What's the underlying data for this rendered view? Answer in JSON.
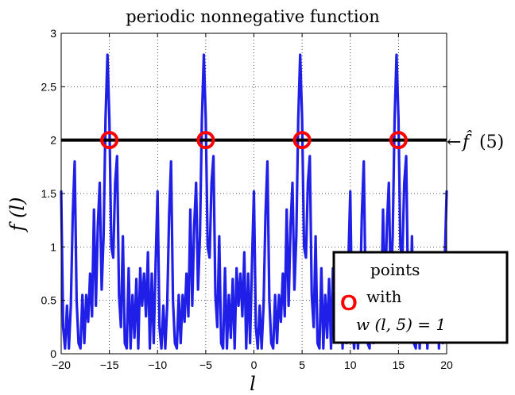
{
  "chart_data": {
    "type": "line",
    "title": "periodic nonnegative function",
    "xlabel": "l",
    "ylabel": "f (l)",
    "xlim": [
      -20,
      20
    ],
    "ylim": [
      0,
      3
    ],
    "x_ticks": [
      "−20",
      "−15",
      "−10",
      "−5",
      "0",
      "5",
      "10",
      "15",
      "20"
    ],
    "y_ticks": [
      "0",
      "0.5",
      "1",
      "1.5",
      "2",
      "2.5",
      "3"
    ],
    "grid": true,
    "period": 10,
    "series": [
      {
        "name": "",
        "color": "#1f1fe8",
        "x": [
          -20,
          -19.8,
          -19.6,
          -19.4,
          -19.2,
          -19.0,
          -18.8,
          -18.6,
          -18.4,
          -18.2,
          -18.0,
          -17.8,
          -17.6,
          -17.4,
          -17.2,
          -17.0,
          -16.8,
          -16.6,
          -16.4,
          -16.2,
          -16.0,
          -15.8,
          -15.6,
          -15.4,
          -15.2,
          -15.0,
          -14.8,
          -14.6,
          -14.4,
          -14.2,
          -14.0,
          -13.8,
          -13.6,
          -13.4,
          -13.2,
          -13.0,
          -12.8,
          -12.6,
          -12.4,
          -12.2,
          -12.0,
          -11.8,
          -11.6,
          -11.4,
          -11.2,
          -11.0,
          -10.8,
          -10.6,
          -10.4,
          -10.2,
          -10.0,
          -9.8,
          -9.6,
          -9.4,
          -9.2,
          -9.0,
          -8.8,
          -8.6,
          -8.4,
          -8.2,
          -8.0,
          -7.8,
          -7.6,
          -7.4,
          -7.2,
          -7.0,
          -6.8,
          -6.6,
          -6.4,
          -6.2,
          -6.0,
          -5.8,
          -5.6,
          -5.4,
          -5.2,
          -5.0,
          -4.8,
          -4.6,
          -4.4,
          -4.2,
          -4.0,
          -3.8,
          -3.6,
          -3.4,
          -3.2,
          -3.0,
          -2.8,
          -2.6,
          -2.4,
          -2.2,
          -2.0,
          -1.8,
          -1.6,
          -1.4,
          -1.2,
          -1.0,
          -0.8,
          -0.6,
          -0.4,
          -0.2,
          0.0,
          0.2,
          0.4,
          0.6,
          0.8,
          1.0,
          1.2,
          1.4,
          1.6,
          1.8,
          2.0,
          2.2,
          2.4,
          2.6,
          2.8,
          3.0,
          3.2,
          3.4,
          3.6,
          3.8,
          4.0,
          4.2,
          4.4,
          4.6,
          4.8,
          5.0,
          5.2,
          5.4,
          5.6,
          5.8,
          6.0,
          6.2,
          6.4,
          6.6,
          6.8,
          7.0,
          7.2,
          7.4,
          7.6,
          7.8,
          8.0,
          8.2,
          8.4,
          8.6,
          8.8,
          9.0,
          9.2,
          9.4,
          9.6,
          9.8,
          10.0,
          10.2,
          10.4,
          10.6,
          10.8,
          11.0,
          11.2,
          11.4,
          11.6,
          11.8,
          12.0,
          12.2,
          12.4,
          12.6,
          12.8,
          13.0,
          13.2,
          13.4,
          13.6,
          13.8,
          14.0,
          14.2,
          14.4,
          14.6,
          14.8,
          15.0,
          15.2,
          15.4,
          15.6,
          15.8,
          16.0,
          16.2,
          16.4,
          16.6,
          16.8,
          17.0,
          17.2,
          17.4,
          17.6,
          17.8,
          18.0,
          18.2,
          18.4,
          18.6,
          18.8,
          19.0,
          19.2,
          19.4,
          19.6,
          19.8,
          20.0
        ],
        "y": [
          1.52,
          0.25,
          0.05,
          0.45,
          0.05,
          0.45,
          1.3,
          1.8,
          0.5,
          0.1,
          0.05,
          0.55,
          0.1,
          0.55,
          0.3,
          0.75,
          0.35,
          1.35,
          0.45,
          1.2,
          1.6,
          0.6,
          1.1,
          2.2,
          2.8,
          2.2,
          1.0,
          0.9,
          1.6,
          1.85,
          0.55,
          0.25,
          1.1,
          0.1,
          0.05,
          0.8,
          0.05,
          0.55,
          0.15,
          0.7,
          0.05,
          0.8,
          0.45,
          0.75,
          0.35,
          0.95,
          0.05,
          0.75,
          0.1,
          0.85,
          1.52,
          0.25,
          0.05,
          0.45,
          0.05,
          0.45,
          1.3,
          1.8,
          0.5,
          0.1,
          0.05,
          0.55,
          0.1,
          0.55,
          0.3,
          0.75,
          0.35,
          1.35,
          0.45,
          1.2,
          1.6,
          0.6,
          1.1,
          2.2,
          2.8,
          2.2,
          1.0,
          0.9,
          1.6,
          1.85,
          0.55,
          0.25,
          1.1,
          0.1,
          0.05,
          0.8,
          0.05,
          0.55,
          0.15,
          0.7,
          0.05,
          0.8,
          0.45,
          0.75,
          0.35,
          0.95,
          0.05,
          0.75,
          0.1,
          0.85,
          1.52,
          0.25,
          0.05,
          0.45,
          0.05,
          0.45,
          1.3,
          1.8,
          0.5,
          0.1,
          0.05,
          0.55,
          0.1,
          0.55,
          0.3,
          0.75,
          0.35,
          1.35,
          0.45,
          1.2,
          1.6,
          0.6,
          1.1,
          2.2,
          2.8,
          2.2,
          1.0,
          0.9,
          1.6,
          1.85,
          0.55,
          0.25,
          1.1,
          0.1,
          0.05,
          0.8,
          0.05,
          0.55,
          0.15,
          0.7,
          0.05,
          0.8,
          0.45,
          0.75,
          0.35,
          0.95,
          0.05,
          0.75,
          0.1,
          0.85,
          1.52,
          0.25,
          0.05,
          0.45,
          0.05,
          0.45,
          1.3,
          1.8,
          0.5,
          0.1,
          0.05,
          0.55,
          0.1,
          0.55,
          0.3,
          0.75,
          0.35,
          1.35,
          0.45,
          1.2,
          1.6,
          0.6,
          1.1,
          2.2,
          2.8,
          2.2,
          1.0,
          0.9,
          1.6,
          1.85,
          0.55,
          0.25,
          1.1,
          0.1,
          0.05,
          0.8,
          0.05,
          0.55,
          0.15,
          0.7,
          0.05,
          0.8,
          0.45,
          0.75,
          0.35,
          0.95,
          0.05,
          0.75,
          0.1,
          0.85,
          1.52
        ]
      }
    ],
    "threshold": {
      "y": 2,
      "color": "#000000",
      "label_prefix": "←",
      "label_hat": "f̂",
      "label_arg": "(5)"
    },
    "markers": {
      "color": "#ff0000",
      "points": [
        {
          "x": -15,
          "y": 2
        },
        {
          "x": -5,
          "y": 2
        },
        {
          "x": 5,
          "y": 2
        },
        {
          "x": 15,
          "y": 2
        }
      ]
    },
    "legend": {
      "placement": "bottom-right",
      "symbol": "O",
      "line1": "points",
      "line2": "with",
      "line3": "w (l, 5) = 1"
    }
  }
}
